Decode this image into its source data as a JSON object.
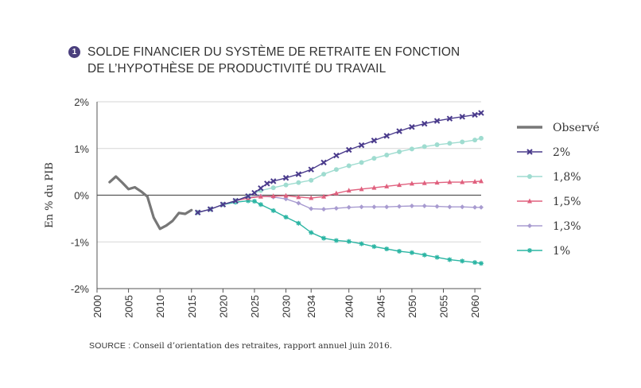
{
  "chart_data": {
    "type": "line",
    "number": "1",
    "title_lines": [
      "SOLDE FINANCIER DU SYSTÈME DE RETRAITE EN FONCTION",
      "DE L’HYPOTHÈSE DE PRODUCTIVITÉ DU TRAVAIL"
    ],
    "ylabel": "En % du PIB",
    "ylim": [
      -2,
      2
    ],
    "yticks": [
      {
        "value": 2,
        "label": "2%"
      },
      {
        "value": 1,
        "label": "1%"
      },
      {
        "value": 0,
        "label": "0%"
      },
      {
        "value": -1,
        "label": "-1%"
      },
      {
        "value": -2,
        "label": "-2%"
      }
    ],
    "xlim": [
      2000,
      2061
    ],
    "xticks": [
      {
        "value": 2000,
        "label": "2000"
      },
      {
        "value": 2005,
        "label": "2005"
      },
      {
        "value": 2010,
        "label": "2010"
      },
      {
        "value": 2015,
        "label": "2015"
      },
      {
        "value": 2020,
        "label": "2020"
      },
      {
        "value": 2025,
        "label": "2025"
      },
      {
        "value": 2030,
        "label": "2030"
      },
      {
        "value": 2034,
        "label": "2034"
      },
      {
        "value": 2040,
        "label": "2040"
      },
      {
        "value": 2045,
        "label": "2045"
      },
      {
        "value": 2050,
        "label": "2050"
      },
      {
        "value": 2055,
        "label": "2055"
      },
      {
        "value": 2060,
        "label": "2060"
      }
    ],
    "series": [
      {
        "name": "Observé",
        "color": "#777777",
        "marker": "none",
        "points": [
          [
            2002,
            0.28
          ],
          [
            2003,
            0.4
          ],
          [
            2004,
            0.27
          ],
          [
            2005,
            0.13
          ],
          [
            2006,
            0.17
          ],
          [
            2007,
            0.08
          ],
          [
            2008,
            -0.03
          ],
          [
            2009,
            -0.48
          ],
          [
            2010,
            -0.72
          ],
          [
            2011,
            -0.65
          ],
          [
            2012,
            -0.55
          ],
          [
            2013,
            -0.38
          ],
          [
            2014,
            -0.4
          ],
          [
            2015,
            -0.32
          ]
        ]
      },
      {
        "name": "2%",
        "color": "#4a3b8c",
        "marker": "x",
        "points": [
          [
            2016,
            -0.37
          ],
          [
            2018,
            -0.3
          ],
          [
            2020,
            -0.2
          ],
          [
            2022,
            -0.12
          ],
          [
            2024,
            -0.02
          ],
          [
            2025,
            0.05
          ],
          [
            2026,
            0.15
          ],
          [
            2027,
            0.25
          ],
          [
            2028,
            0.3
          ],
          [
            2030,
            0.37
          ],
          [
            2032,
            0.45
          ],
          [
            2034,
            0.55
          ],
          [
            2036,
            0.7
          ],
          [
            2038,
            0.85
          ],
          [
            2040,
            0.97
          ],
          [
            2042,
            1.07
          ],
          [
            2044,
            1.17
          ],
          [
            2046,
            1.27
          ],
          [
            2048,
            1.37
          ],
          [
            2050,
            1.46
          ],
          [
            2052,
            1.53
          ],
          [
            2054,
            1.59
          ],
          [
            2056,
            1.64
          ],
          [
            2058,
            1.68
          ],
          [
            2060,
            1.72
          ],
          [
            2061,
            1.76
          ]
        ]
      },
      {
        "name": "1,8%",
        "color": "#9fdcd0",
        "marker": "circle",
        "points": [
          [
            2016,
            -0.37
          ],
          [
            2018,
            -0.3
          ],
          [
            2020,
            -0.2
          ],
          [
            2022,
            -0.12
          ],
          [
            2024,
            -0.02
          ],
          [
            2026,
            0.1
          ],
          [
            2028,
            0.16
          ],
          [
            2030,
            0.22
          ],
          [
            2032,
            0.27
          ],
          [
            2034,
            0.32
          ],
          [
            2036,
            0.45
          ],
          [
            2038,
            0.55
          ],
          [
            2040,
            0.63
          ],
          [
            2042,
            0.7
          ],
          [
            2044,
            0.79
          ],
          [
            2046,
            0.86
          ],
          [
            2048,
            0.93
          ],
          [
            2050,
            0.99
          ],
          [
            2052,
            1.04
          ],
          [
            2054,
            1.08
          ],
          [
            2056,
            1.11
          ],
          [
            2058,
            1.14
          ],
          [
            2060,
            1.18
          ],
          [
            2061,
            1.22
          ]
        ]
      },
      {
        "name": "1,5%",
        "color": "#e0607e",
        "marker": "triangle",
        "points": [
          [
            2016,
            -0.37
          ],
          [
            2018,
            -0.3
          ],
          [
            2020,
            -0.2
          ],
          [
            2022,
            -0.12
          ],
          [
            2024,
            -0.06
          ],
          [
            2026,
            -0.03
          ],
          [
            2028,
            -0.02
          ],
          [
            2030,
            -0.01
          ],
          [
            2032,
            -0.04
          ],
          [
            2034,
            -0.06
          ],
          [
            2036,
            -0.03
          ],
          [
            2038,
            0.04
          ],
          [
            2040,
            0.1
          ],
          [
            2042,
            0.13
          ],
          [
            2044,
            0.16
          ],
          [
            2046,
            0.19
          ],
          [
            2048,
            0.22
          ],
          [
            2050,
            0.25
          ],
          [
            2052,
            0.26
          ],
          [
            2054,
            0.27
          ],
          [
            2056,
            0.28
          ],
          [
            2058,
            0.28
          ],
          [
            2060,
            0.29
          ],
          [
            2061,
            0.3
          ]
        ]
      },
      {
        "name": "1,3%",
        "color": "#a89bd0",
        "marker": "diamond",
        "points": [
          [
            2016,
            -0.37
          ],
          [
            2018,
            -0.3
          ],
          [
            2020,
            -0.2
          ],
          [
            2022,
            -0.12
          ],
          [
            2024,
            -0.05
          ],
          [
            2026,
            -0.02
          ],
          [
            2028,
            -0.04
          ],
          [
            2030,
            -0.08
          ],
          [
            2032,
            -0.17
          ],
          [
            2034,
            -0.29
          ],
          [
            2036,
            -0.3
          ],
          [
            2038,
            -0.28
          ],
          [
            2040,
            -0.26
          ],
          [
            2042,
            -0.25
          ],
          [
            2044,
            -0.25
          ],
          [
            2046,
            -0.25
          ],
          [
            2048,
            -0.24
          ],
          [
            2050,
            -0.23
          ],
          [
            2052,
            -0.23
          ],
          [
            2054,
            -0.24
          ],
          [
            2056,
            -0.25
          ],
          [
            2058,
            -0.25
          ],
          [
            2060,
            -0.26
          ],
          [
            2061,
            -0.26
          ]
        ]
      },
      {
        "name": "1%",
        "color": "#2bb5a3",
        "marker": "asterisk",
        "points": [
          [
            2016,
            -0.37
          ],
          [
            2018,
            -0.3
          ],
          [
            2020,
            -0.2
          ],
          [
            2022,
            -0.15
          ],
          [
            2024,
            -0.12
          ],
          [
            2025,
            -0.13
          ],
          [
            2026,
            -0.2
          ],
          [
            2028,
            -0.33
          ],
          [
            2030,
            -0.47
          ],
          [
            2032,
            -0.6
          ],
          [
            2034,
            -0.8
          ],
          [
            2036,
            -0.92
          ],
          [
            2038,
            -0.97
          ],
          [
            2040,
            -0.99
          ],
          [
            2042,
            -1.04
          ],
          [
            2044,
            -1.1
          ],
          [
            2046,
            -1.15
          ],
          [
            2048,
            -1.2
          ],
          [
            2050,
            -1.23
          ],
          [
            2052,
            -1.28
          ],
          [
            2054,
            -1.33
          ],
          [
            2056,
            -1.38
          ],
          [
            2058,
            -1.41
          ],
          [
            2060,
            -1.44
          ],
          [
            2061,
            -1.46
          ]
        ]
      }
    ]
  },
  "source": {
    "label": "SOURCE :",
    "text": "Conseil d’orientation des retraites, rapport annuel juin 2016."
  }
}
